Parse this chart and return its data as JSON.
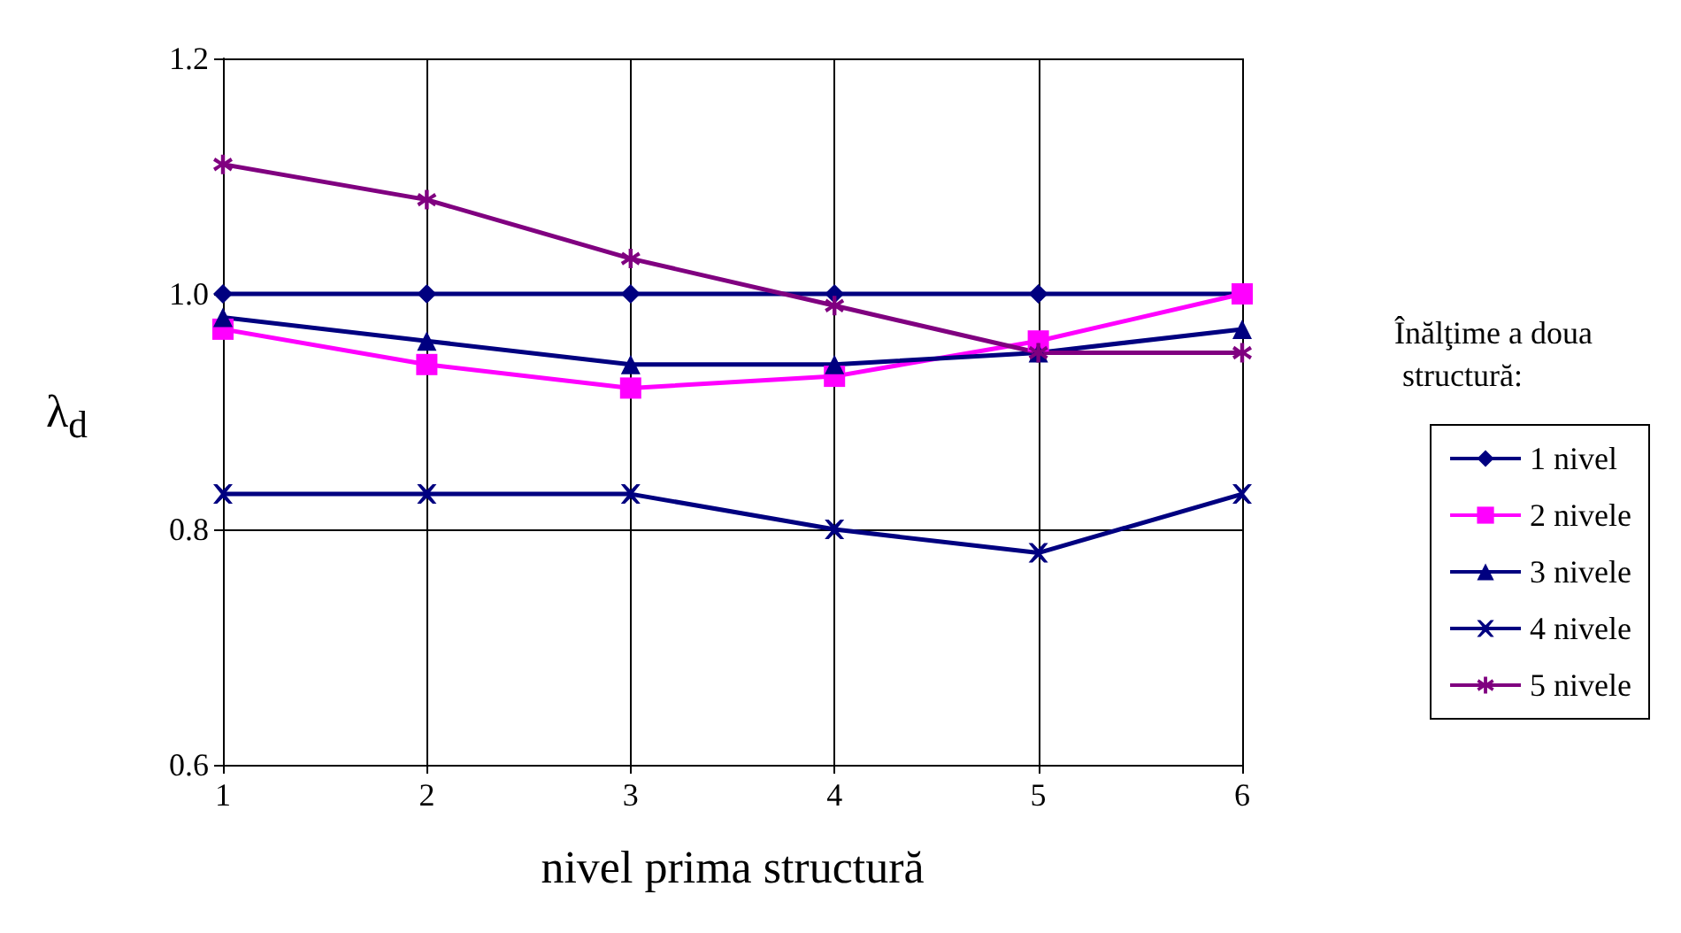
{
  "chart_data": {
    "type": "line",
    "xlabel": "nivel prima structură",
    "ylabel": "λ$_{d}$",
    "legend_title": "Înălţime a doua structură:",
    "x": [
      1,
      2,
      3,
      4,
      5,
      6
    ],
    "xlim": [
      1,
      6
    ],
    "xticks": [
      1,
      2,
      3,
      4,
      5,
      6
    ],
    "ylim": [
      0.6,
      1.2
    ],
    "yticks": [
      {
        "value": 0.6,
        "label": "0.6"
      },
      {
        "value": 0.8,
        "label": "0.8"
      },
      {
        "value": 1.0,
        "label": "1.0"
      },
      {
        "value": 1.2,
        "label": "1.2"
      }
    ],
    "grid": true,
    "legend": "right",
    "line_style": "solid",
    "series": [
      {
        "name": "1 nivel",
        "color": "#000080",
        "marker": "diamond",
        "values": [
          1.0,
          1.0,
          1.0,
          1.0,
          1.0,
          1.0
        ]
      },
      {
        "name": "2 nivele",
        "color": "#ff00ff",
        "marker": "square",
        "values": [
          0.97,
          0.94,
          0.92,
          0.93,
          0.96,
          1.0
        ]
      },
      {
        "name": "3 nivele",
        "color": "#000080",
        "marker": "triangle",
        "values": [
          0.98,
          0.96,
          0.94,
          0.94,
          0.95,
          0.97
        ]
      },
      {
        "name": "4 nivele",
        "color": "#000080",
        "marker": "cross",
        "values": [
          0.83,
          0.83,
          0.83,
          0.8,
          0.78,
          0.83
        ]
      },
      {
        "name": "5 nivele",
        "color": "#800080",
        "marker": "star",
        "values": [
          1.11,
          1.08,
          1.03,
          0.99,
          0.95,
          0.95
        ]
      }
    ]
  }
}
